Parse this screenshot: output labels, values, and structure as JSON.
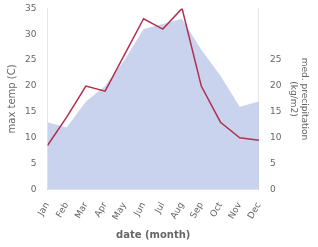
{
  "chart_data": {
    "type": "line",
    "categories": [
      "Jan",
      "Feb",
      "Mar",
      "Apr",
      "May",
      "Jun",
      "Jul",
      "Aug",
      "Sep",
      "Oct",
      "Nov",
      "Dec"
    ],
    "series": [
      {
        "type": "line",
        "color": "#b03050",
        "values": [
          8.5,
          14,
          20,
          19,
          26,
          33,
          31,
          35,
          20,
          13,
          10,
          9.5
        ]
      },
      {
        "type": "area",
        "color": "#b8c4e8",
        "axis": "y2",
        "values": [
          13,
          12,
          17,
          20,
          25,
          31,
          32,
          33,
          27,
          22,
          16,
          17
        ]
      }
    ],
    "xlabel": "date (month)",
    "ylabel": "max temp (C)",
    "y2label": "med. precipitation\n(kg/m2)",
    "ylim": [
      0,
      35
    ],
    "yticks": [
      0,
      5,
      10,
      15,
      20,
      25,
      30,
      35
    ],
    "y2lim": [
      0,
      35
    ],
    "y2ticks": [
      0,
      5,
      10,
      15,
      20,
      25
    ],
    "grid": false
  }
}
